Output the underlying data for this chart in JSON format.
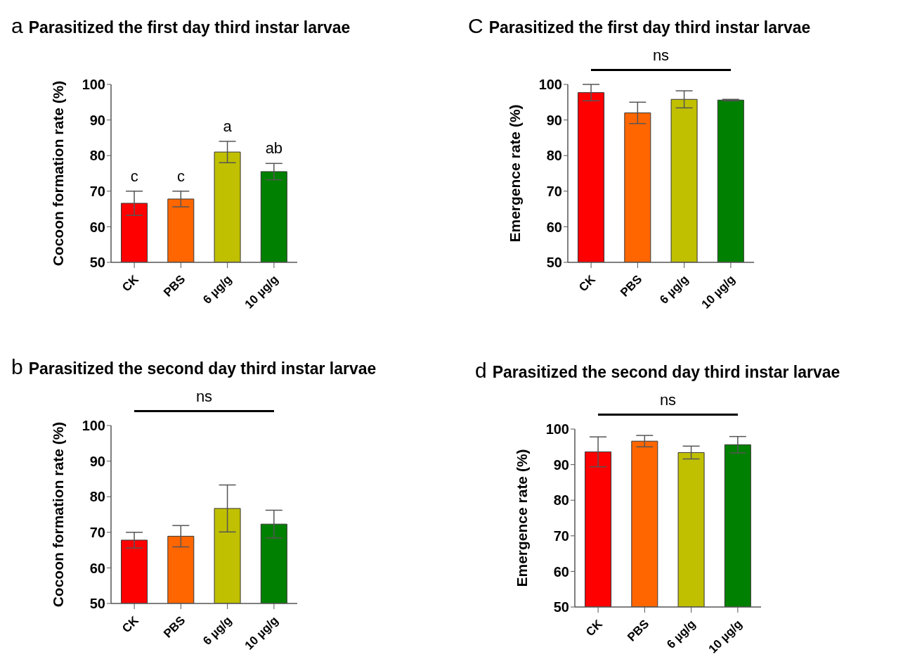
{
  "chart_data": [
    {
      "type": "bar",
      "title": "Parasitized the first day third instar larvae",
      "ylabel": "Cocoon formation rate (%)",
      "categories": [
        "CK",
        "PBS",
        "6 µg/g",
        "10 µg/g"
      ],
      "values": [
        66.6,
        67.8,
        81.0,
        75.5
      ],
      "errors": [
        3.4,
        2.2,
        3.0,
        2.3
      ],
      "colors": [
        "#ff0000",
        "#ff6600",
        "#c0c000",
        "#008000"
      ],
      "ylim": [
        50,
        100
      ],
      "yticks": [
        50,
        60,
        70,
        80,
        90,
        100
      ],
      "annotations": [
        "a",
        "c",
        "c",
        "a",
        "ab"
      ]
    },
    {
      "type": "bar",
      "title": "Parasitized the first day third instar larvae",
      "ylabel": "Emergence rate  (%)",
      "categories": [
        "CK",
        "PBS",
        "6 µg/g",
        "10 µg/g"
      ],
      "values": [
        97.7,
        92.0,
        95.8,
        95.6
      ],
      "errors": [
        2.3,
        3.0,
        2.4,
        0.2
      ],
      "colors": [
        "#ff0000",
        "#ff6600",
        "#c0c000",
        "#008000"
      ],
      "ylim": [
        50,
        100
      ],
      "yticks": [
        50,
        60,
        70,
        80,
        90,
        100
      ],
      "annotations": [
        "C",
        "ns"
      ]
    },
    {
      "type": "bar",
      "title": "Parasitized the second day third instar larvae",
      "ylabel": "Cocoon formation rate  (%)",
      "categories": [
        "CK",
        "PBS",
        "6 µg/g",
        "10 µg/g"
      ],
      "values": [
        67.8,
        68.9,
        76.7,
        72.3
      ],
      "errors": [
        2.2,
        3.0,
        6.6,
        3.9
      ],
      "colors": [
        "#ff0000",
        "#ff6600",
        "#c0c000",
        "#008000"
      ],
      "ylim": [
        50,
        100
      ],
      "yticks": [
        50,
        60,
        70,
        80,
        90,
        100
      ],
      "annotations": [
        "b",
        "ns"
      ]
    },
    {
      "type": "bar",
      "title": "Parasitized the second day third instar larvae",
      "ylabel": "Emergence rate  (%)",
      "categories": [
        "CK",
        "PBS",
        "6 µg/g",
        "10 µg/g"
      ],
      "values": [
        93.6,
        96.6,
        93.4,
        95.6
      ],
      "errors": [
        4.2,
        1.6,
        1.8,
        2.3
      ],
      "colors": [
        "#ff0000",
        "#ff6600",
        "#c0c000",
        "#008000"
      ],
      "ylim": [
        50,
        100
      ],
      "yticks": [
        50,
        60,
        70,
        80,
        90,
        100
      ],
      "annotations": [
        "d",
        "ns"
      ]
    }
  ]
}
